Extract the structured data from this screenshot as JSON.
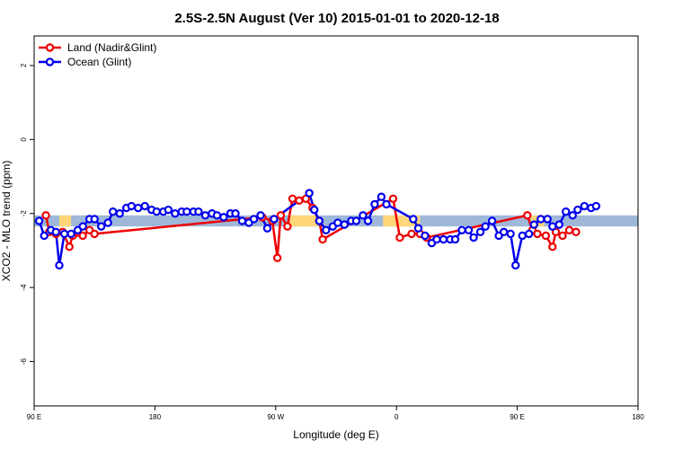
{
  "chart_data": {
    "type": "line",
    "title": "2.5S-2.5N August (Ver 10)   2015-01-01 to 2020-12-18",
    "xlabel": "Longitude (deg E)",
    "ylabel": "XCO2 - MLO trend (ppm)",
    "xlim": [
      90,
      450
    ],
    "ylim": [
      -7.2,
      2.8
    ],
    "xticks": [
      {
        "value": 90,
        "label": "90 E"
      },
      {
        "value": 162,
        "label": "180"
      },
      {
        "value": 234,
        "label": "90 W"
      },
      {
        "value": 306,
        "label": "0"
      },
      {
        "value": 378,
        "label": "90 E"
      },
      {
        "value": 450,
        "label": "180"
      }
    ],
    "yticks": [
      {
        "value": 2,
        "label": "2"
      },
      {
        "value": 0,
        "label": "0"
      },
      {
        "value": -2,
        "label": "-2"
      },
      {
        "value": -4,
        "label": "-4"
      },
      {
        "value": -6,
        "label": "-6"
      }
    ],
    "grid": false,
    "legend_position": "top-left",
    "bands": [
      {
        "name": "ocean-band",
        "color": "#9fb8da",
        "y_min": -2.35,
        "y_max": -2.05,
        "x_ranges": [
          [
            90,
            450
          ]
        ]
      },
      {
        "name": "land-band",
        "color": "#ffd77a",
        "y_min": -2.35,
        "y_max": -2.05,
        "x_ranges": [
          [
            105,
            112
          ],
          [
            242,
            259
          ],
          [
            298,
            320
          ],
          [
            386,
            394
          ]
        ]
      }
    ],
    "series": [
      {
        "name": "Land (Nadir&Glint)",
        "color": "#ee0000",
        "points": [
          [
            97,
            -2.05
          ],
          [
            99,
            -2.5
          ],
          [
            103,
            -2.55
          ],
          [
            107,
            -2.5
          ],
          [
            111,
            -2.9
          ],
          [
            113,
            -2.6
          ],
          [
            119,
            -2.6
          ],
          [
            123,
            -2.45
          ],
          [
            126,
            -2.55
          ],
          [
            226,
            -2.1
          ],
          [
            232,
            -2.2
          ],
          [
            235,
            -3.2
          ],
          [
            237,
            -2.05
          ],
          [
            241,
            -2.35
          ],
          [
            244,
            -1.6
          ],
          [
            248,
            -1.65
          ],
          [
            252,
            -1.6
          ],
          [
            256,
            -1.85
          ],
          [
            260,
            -2.2
          ],
          [
            262,
            -2.7
          ],
          [
            304,
            -1.6
          ],
          [
            308,
            -2.65
          ],
          [
            315,
            -2.55
          ],
          [
            320,
            -2.55
          ],
          [
            324,
            -2.65
          ],
          [
            384,
            -2.05
          ],
          [
            387,
            -2.45
          ],
          [
            390,
            -2.55
          ],
          [
            395,
            -2.6
          ],
          [
            399,
            -2.9
          ],
          [
            401,
            -2.5
          ],
          [
            405,
            -2.6
          ],
          [
            409,
            -2.45
          ],
          [
            413,
            -2.5
          ]
        ]
      },
      {
        "name": "Ocean (Glint)",
        "color": "#0000ee",
        "points": [
          [
            93,
            -2.2
          ],
          [
            96,
            -2.6
          ],
          [
            100,
            -2.45
          ],
          [
            103,
            -2.5
          ],
          [
            105,
            -3.4
          ],
          [
            108,
            -2.55
          ],
          [
            112,
            -2.55
          ],
          [
            116,
            -2.45
          ],
          [
            119,
            -2.35
          ],
          [
            123,
            -2.15
          ],
          [
            126,
            -2.15
          ],
          [
            130,
            -2.35
          ],
          [
            134,
            -2.25
          ],
          [
            137,
            -1.95
          ],
          [
            141,
            -2.0
          ],
          [
            145,
            -1.85
          ],
          [
            148,
            -1.8
          ],
          [
            152,
            -1.85
          ],
          [
            156,
            -1.8
          ],
          [
            160,
            -1.9
          ],
          [
            163,
            -1.95
          ],
          [
            167,
            -1.95
          ],
          [
            170,
            -1.9
          ],
          [
            174,
            -2.0
          ],
          [
            178,
            -1.95
          ],
          [
            181,
            -1.95
          ],
          [
            185,
            -1.95
          ],
          [
            188,
            -1.95
          ],
          [
            192,
            -2.05
          ],
          [
            196,
            -2.0
          ],
          [
            199,
            -2.05
          ],
          [
            203,
            -2.1
          ],
          [
            207,
            -2.0
          ],
          [
            210,
            -2.0
          ],
          [
            214,
            -2.2
          ],
          [
            218,
            -2.25
          ],
          [
            221,
            -2.15
          ],
          [
            225,
            -2.05
          ],
          [
            229,
            -2.4
          ],
          [
            233,
            -2.15
          ],
          [
            254,
            -1.45
          ],
          [
            257,
            -1.9
          ],
          [
            260,
            -2.2
          ],
          [
            264,
            -2.45
          ],
          [
            268,
            -2.35
          ],
          [
            271,
            -2.25
          ],
          [
            275,
            -2.3
          ],
          [
            279,
            -2.2
          ],
          [
            282,
            -2.2
          ],
          [
            286,
            -2.05
          ],
          [
            289,
            -2.2
          ],
          [
            293,
            -1.75
          ],
          [
            297,
            -1.55
          ],
          [
            300,
            -1.75
          ],
          [
            316,
            -2.15
          ],
          [
            319,
            -2.4
          ],
          [
            323,
            -2.6
          ],
          [
            327,
            -2.8
          ],
          [
            330,
            -2.7
          ],
          [
            334,
            -2.7
          ],
          [
            338,
            -2.7
          ],
          [
            341,
            -2.7
          ],
          [
            345,
            -2.45
          ],
          [
            349,
            -2.45
          ],
          [
            352,
            -2.65
          ],
          [
            356,
            -2.5
          ],
          [
            359,
            -2.35
          ],
          [
            363,
            -2.2
          ],
          [
            367,
            -2.6
          ],
          [
            370,
            -2.5
          ],
          [
            374,
            -2.55
          ],
          [
            377,
            -3.4
          ],
          [
            381,
            -2.6
          ],
          [
            385,
            -2.55
          ],
          [
            388,
            -2.3
          ],
          [
            392,
            -2.15
          ],
          [
            396,
            -2.15
          ],
          [
            399,
            -2.35
          ],
          [
            403,
            -2.3
          ],
          [
            407,
            -1.95
          ],
          [
            411,
            -2.05
          ],
          [
            414,
            -1.9
          ],
          [
            418,
            -1.8
          ],
          [
            422,
            -1.85
          ],
          [
            425,
            -1.8
          ]
        ]
      }
    ]
  }
}
